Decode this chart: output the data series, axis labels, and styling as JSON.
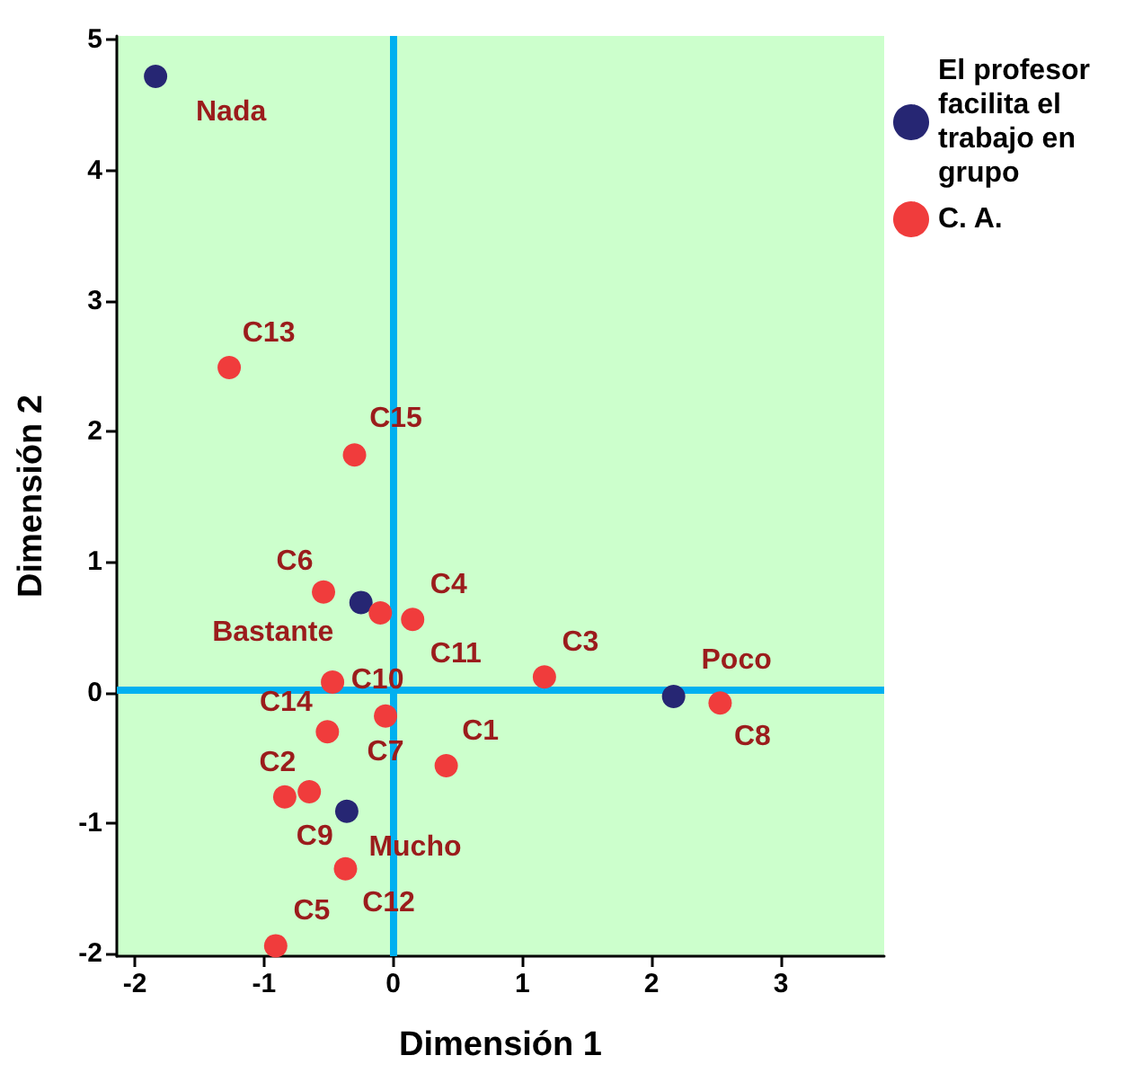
{
  "chart_data": {
    "type": "scatter",
    "xlabel": "Dimensión 1",
    "ylabel": "Dimensión 2",
    "xlim": [
      -2.14,
      3.8
    ],
    "ylim": [
      -2.02,
      5.03
    ],
    "xticks": [
      -2,
      -1,
      0,
      1,
      2,
      3
    ],
    "yticks": [
      -2,
      -1,
      0,
      1,
      2,
      3,
      4,
      5
    ],
    "grid": false,
    "legend": "top right",
    "marker": "circle",
    "ref_lines": [
      {
        "axis": "x",
        "value": 0,
        "color": "#00b0f0"
      },
      {
        "axis": "y",
        "value": 0.02,
        "color": "#00b0f0"
      }
    ],
    "series": [
      {
        "name": "El profesor facilita el trabajo en grupo",
        "color": "#262673",
        "x": [
          -1.84,
          -0.25,
          2.17,
          -0.36
        ],
        "values": [
          4.72,
          0.69,
          -0.03,
          -0.91
        ],
        "value_labels": [
          "Nada",
          "Bastante",
          "Poco",
          "Mucho"
        ]
      },
      {
        "name": "C. A.",
        "color": "#f03c3c",
        "x": [
          0.41,
          -0.84,
          1.17,
          0.15,
          -0.91,
          -0.54,
          -0.06,
          2.53,
          -0.65,
          -0.47,
          -0.1,
          -0.37,
          -1.27,
          -0.51,
          -0.3
        ],
        "values": [
          -0.56,
          -0.8,
          0.12,
          0.56,
          -1.94,
          0.77,
          -0.18,
          -0.08,
          -0.76,
          0.08,
          0.61,
          -1.35,
          2.49,
          -0.3,
          1.82
        ],
        "value_labels": [
          "C1",
          "C2",
          "C3",
          "C4",
          "C5",
          "C6",
          "C7",
          "C8",
          "C9",
          "C10",
          "C11",
          "C12",
          "C13",
          "C14",
          "C15"
        ]
      }
    ]
  }
}
